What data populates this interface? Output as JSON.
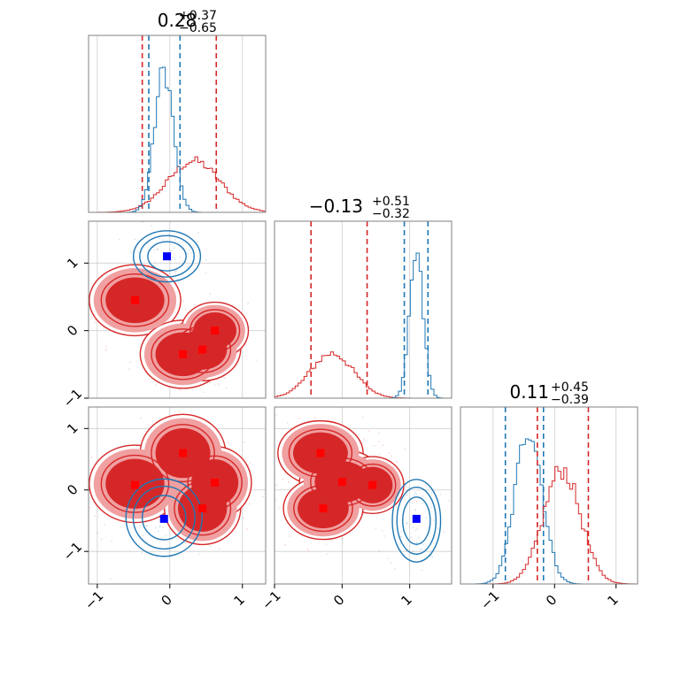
{
  "chart_data": {
    "type": "corner",
    "parameters": 3,
    "colors": {
      "series_a": "#1f77b4",
      "series_b": "#d62728",
      "marker_a": "#0000ff",
      "marker_b": "#ff0000",
      "grid": "#b0b0b0"
    },
    "axis_ranges": {
      "p0": [
        -1.12,
        1.32
      ],
      "p1": [
        -1.0,
        1.62
      ],
      "p2": [
        -1.53,
        1.35
      ]
    },
    "ticks": {
      "p0": [
        -1,
        0,
        1
      ],
      "p1": [
        -1,
        0,
        1
      ],
      "p2": [
        -1,
        0,
        1
      ]
    },
    "tick_labels": {
      "x_p0": [
        "−1",
        "0",
        "1"
      ],
      "x_p1": [
        "−1",
        "0",
        "1"
      ],
      "x_p2": [
        "−1",
        "0",
        "1"
      ],
      "y_p1": [
        "−1",
        "0",
        "1"
      ],
      "y_p2": [
        "−1",
        "0",
        "1"
      ]
    },
    "grid": true,
    "titles": [
      {
        "value": "0.28",
        "plus": "+0.37",
        "minus": "−0.65"
      },
      {
        "value": "−0.13",
        "plus": "+0.51",
        "minus": "−0.32"
      },
      {
        "value": "0.11",
        "plus": "+0.45",
        "minus": "−0.39"
      }
    ],
    "diagonal": [
      {
        "param": "p0",
        "series": [
          {
            "color": "series_b",
            "mean": 0.33,
            "sd": 0.36,
            "quantiles": [
              -0.38,
              0.64
            ]
          },
          {
            "color": "series_a",
            "mean": -0.08,
            "sd": 0.13,
            "quantiles": [
              -0.29,
              0.14
            ]
          }
        ]
      },
      {
        "param": "p1",
        "series": [
          {
            "color": "series_b",
            "mean": -0.15,
            "sd": 0.32,
            "quantiles": [
              -0.46,
              0.37
            ]
          },
          {
            "color": "series_a",
            "mean": 1.1,
            "sd": 0.1,
            "quantiles": [
              0.92,
              1.27
            ]
          }
        ]
      },
      {
        "param": "p2",
        "series": [
          {
            "color": "series_a",
            "mean": -0.42,
            "sd": 0.22,
            "quantiles": [
              -0.8,
              -0.18
            ]
          },
          {
            "color": "series_b",
            "mean": 0.12,
            "sd": 0.3,
            "quantiles": [
              -0.28,
              0.55
            ]
          }
        ]
      }
    ],
    "scatter_panels": [
      {
        "x": "p0",
        "y": "p1",
        "blue_clusters": [
          {
            "x": -0.04,
            "y": 1.1,
            "sx": 0.22,
            "sy": 0.18
          }
        ],
        "red_clusters": [
          {
            "x": -0.48,
            "y": 0.45,
            "sx": 0.3,
            "sy": 0.25
          },
          {
            "x": 0.18,
            "y": -0.35,
            "sx": 0.28,
            "sy": 0.24
          },
          {
            "x": 0.45,
            "y": -0.28,
            "sx": 0.25,
            "sy": 0.22
          },
          {
            "x": 0.62,
            "y": 0.0,
            "sx": 0.22,
            "sy": 0.2
          }
        ],
        "blue_markers": [
          {
            "x": -0.04,
            "y": 1.1
          }
        ],
        "red_markers": [
          {
            "x": -0.48,
            "y": 0.45
          },
          {
            "x": 0.18,
            "y": -0.35
          },
          {
            "x": 0.45,
            "y": -0.28
          },
          {
            "x": 0.62,
            "y": 0.0
          }
        ]
      },
      {
        "x": "p0",
        "y": "p2",
        "blue_clusters": [
          {
            "x": -0.08,
            "y": -0.45,
            "sx": 0.25,
            "sy": 0.3
          }
        ],
        "red_clusters": [
          {
            "x": -0.48,
            "y": 0.1,
            "sx": 0.3,
            "sy": 0.3
          },
          {
            "x": 0.18,
            "y": 0.6,
            "sx": 0.28,
            "sy": 0.3
          },
          {
            "x": 0.45,
            "y": -0.3,
            "sx": 0.25,
            "sy": 0.28
          },
          {
            "x": 0.62,
            "y": 0.12,
            "sx": 0.24,
            "sy": 0.28
          }
        ],
        "blue_markers": [
          {
            "x": -0.08,
            "y": -0.47
          }
        ],
        "red_markers": [
          {
            "x": -0.48,
            "y": 0.08
          },
          {
            "x": 0.18,
            "y": 0.6
          },
          {
            "x": 0.45,
            "y": -0.3
          },
          {
            "x": 0.62,
            "y": 0.12
          }
        ]
      },
      {
        "x": "p1",
        "y": "p2",
        "blue_clusters": [
          {
            "x": 1.1,
            "y": -0.5,
            "sx": 0.17,
            "sy": 0.32
          }
        ],
        "red_clusters": [
          {
            "x": -0.32,
            "y": 0.6,
            "sx": 0.3,
            "sy": 0.25
          },
          {
            "x": 0.0,
            "y": 0.13,
            "sx": 0.3,
            "sy": 0.25
          },
          {
            "x": 0.45,
            "y": 0.08,
            "sx": 0.22,
            "sy": 0.22
          },
          {
            "x": -0.28,
            "y": -0.3,
            "sx": 0.28,
            "sy": 0.24
          }
        ],
        "blue_markers": [
          {
            "x": 1.1,
            "y": -0.47
          }
        ],
        "red_markers": [
          {
            "x": -0.32,
            "y": 0.6
          },
          {
            "x": 0.0,
            "y": 0.13
          },
          {
            "x": 0.45,
            "y": 0.08
          },
          {
            "x": -0.28,
            "y": -0.3
          }
        ]
      }
    ]
  }
}
